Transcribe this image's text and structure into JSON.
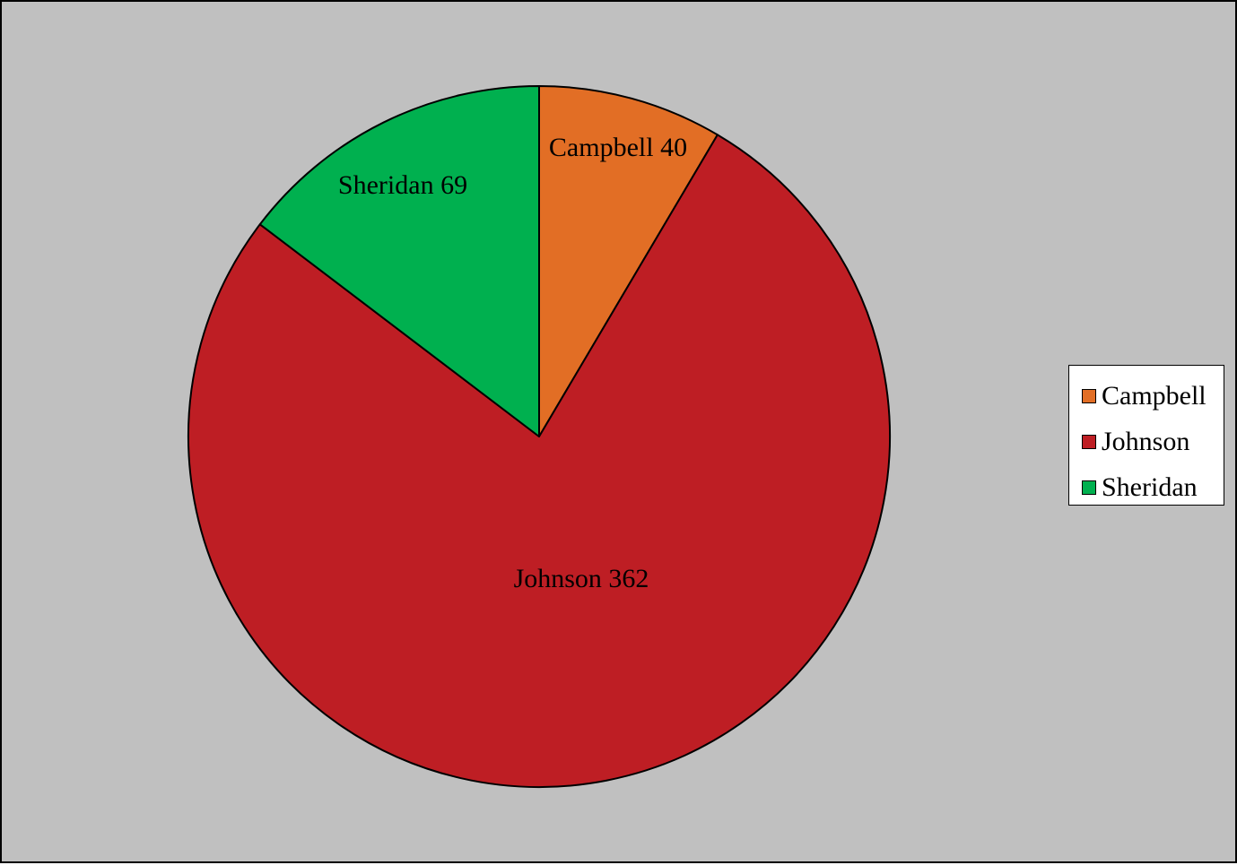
{
  "chart_data": {
    "type": "pie",
    "categories": [
      "Campbell",
      "Johnson",
      "Sheridan"
    ],
    "values": [
      40,
      362,
      69
    ],
    "colors": [
      "#e26e25",
      "#be1e24",
      "#00b04f"
    ],
    "labels": [
      "Campbell 40",
      "Johnson 362",
      "Sheridan 69"
    ],
    "start": "12 o'clock",
    "direction": "clockwise",
    "legend_position": "right",
    "background_color": "#c0c0c0",
    "outline_color": "#000000"
  }
}
